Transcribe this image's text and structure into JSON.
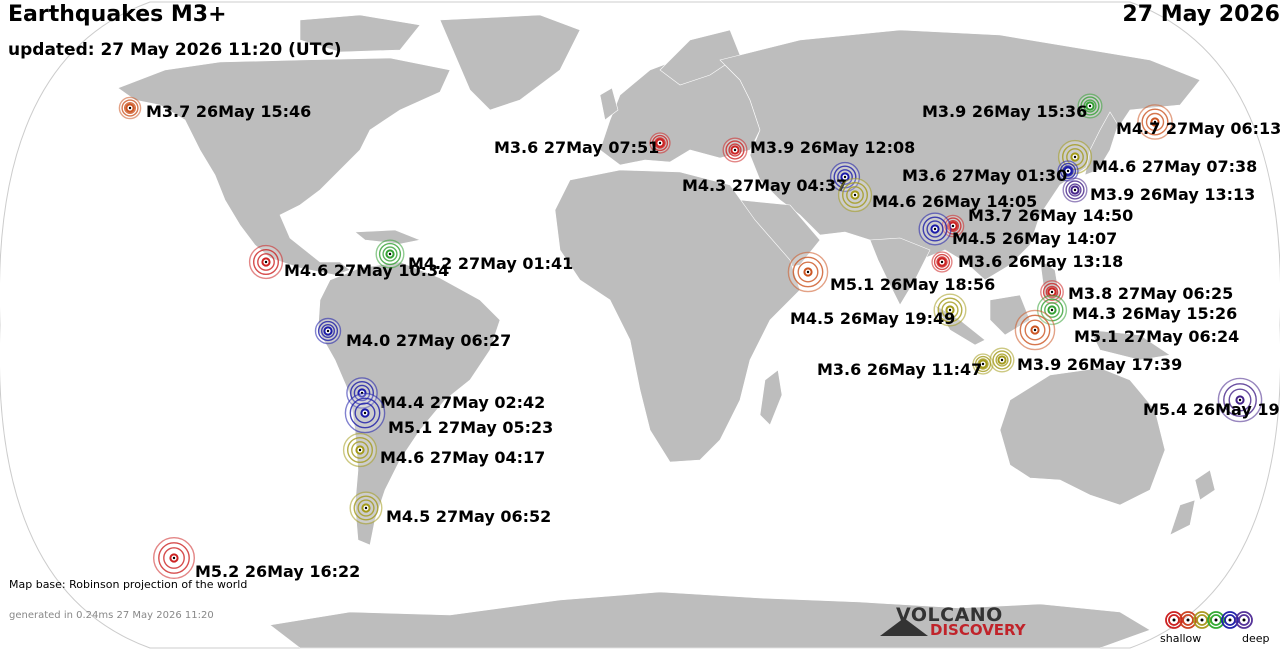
{
  "header": {
    "title": "Earthquakes M3+",
    "updated": "updated: 27 May 2026 11:20 (UTC)",
    "date": "27 May 2026"
  },
  "footer": {
    "map_base": "Map base: Robinson projection of the world",
    "generated": "generated in 0.24ms 27 May 2026 11:20"
  },
  "logo": {
    "line1": "VOLCANO",
    "line2": "DISCOVERY"
  },
  "legend": {
    "shallow_label": "shallow",
    "deep_label": "deep",
    "colors": [
      "#cc2222",
      "#cc4422",
      "#aa9a22",
      "#33aa33",
      "#2222aa",
      "#553399"
    ]
  },
  "depth_colors": {
    "red": "#cc2222",
    "orange": "#cc5522",
    "olive": "#a39a1a",
    "green": "#33a033",
    "blue": "#1a1aa8",
    "purple": "#442288"
  },
  "earthquakes": [
    {
      "label": "M3.7 26May 15:46",
      "mag": 3.7,
      "color": "orange"
    },
    {
      "label": "M3.6 27May 07:51",
      "mag": 3.6,
      "color": "red"
    },
    {
      "label": "M3.9 26May 12:08",
      "mag": 3.9,
      "color": "red"
    },
    {
      "label": "M4.3 27May 04:37",
      "mag": 4.3,
      "color": "blue"
    },
    {
      "label": "M4.6 26May 14:05",
      "mag": 4.6,
      "color": "olive"
    },
    {
      "label": "M3.9 26May 15:36",
      "mag": 3.9,
      "color": "green"
    },
    {
      "label": "M4.7 27May 06:13",
      "mag": 4.7,
      "color": "orange"
    },
    {
      "label": "M4.6 27May 07:38",
      "mag": 4.6,
      "color": "olive"
    },
    {
      "label": "M3.6 27May 01:30",
      "mag": 3.6,
      "color": "blue"
    },
    {
      "label": "M3.9 26May 13:13",
      "mag": 3.9,
      "color": "purple"
    },
    {
      "label": "M3.7 26May 14:50",
      "mag": 3.7,
      "color": "red"
    },
    {
      "label": "M4.5 26May 14:07",
      "mag": 4.5,
      "color": "blue"
    },
    {
      "label": "M3.6 26May 13:18",
      "mag": 3.6,
      "color": "red"
    },
    {
      "label": "M4.6 27May 10:34",
      "mag": 4.6,
      "color": "red"
    },
    {
      "label": "M4.2 27May 01:41",
      "mag": 4.2,
      "color": "green"
    },
    {
      "label": "M5.1 26May 18:56",
      "mag": 5.1,
      "color": "orange"
    },
    {
      "label": "M3.8 27May 06:25",
      "mag": 3.8,
      "color": "red"
    },
    {
      "label": "M4.3 26May 15:26",
      "mag": 4.3,
      "color": "green"
    },
    {
      "label": "M5.1 27May 06:24",
      "mag": 5.1,
      "color": "orange"
    },
    {
      "label": "M4.5 26May 19:49",
      "mag": 4.5,
      "color": "olive"
    },
    {
      "label": "M4.0 27May 06:27",
      "mag": 4.0,
      "color": "blue"
    },
    {
      "label": "M3.6 26May 11:47",
      "mag": 3.6,
      "color": "olive"
    },
    {
      "label": "M3.9 26May 17:39",
      "mag": 3.9,
      "color": "olive"
    },
    {
      "label": "M4.4 27May 02:42",
      "mag": 4.4,
      "color": "blue"
    },
    {
      "label": "M5.1 27May 05:23",
      "mag": 5.1,
      "color": "blue"
    },
    {
      "label": "M4.6 27May 04:17",
      "mag": 4.6,
      "color": "olive"
    },
    {
      "label": "M5.4 26May 19:",
      "mag": 5.4,
      "color": "purple"
    },
    {
      "label": "M4.5 27May 06:52",
      "mag": 4.5,
      "color": "olive"
    },
    {
      "label": "M5.2 26May 16:22",
      "mag": 5.2,
      "color": "red"
    }
  ]
}
